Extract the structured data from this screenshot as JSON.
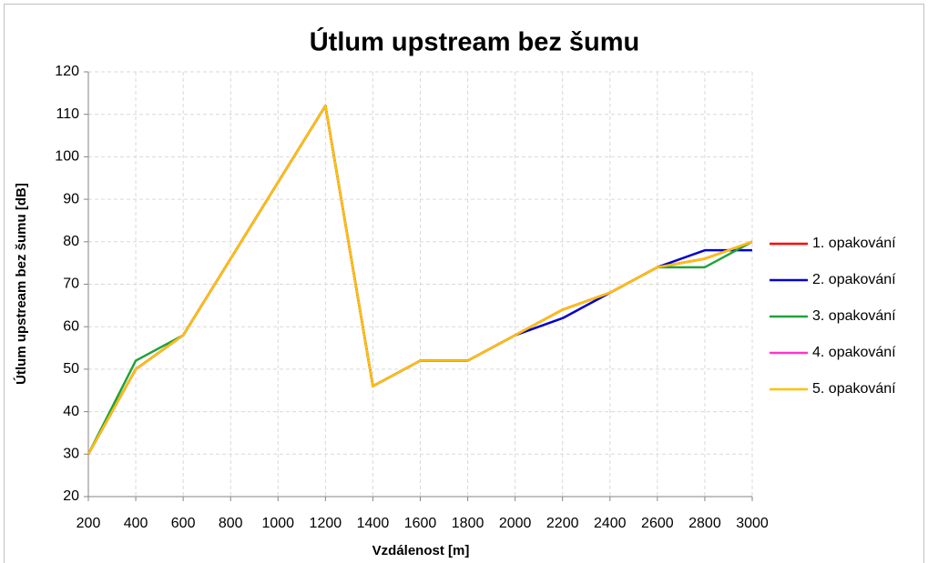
{
  "chart_data": {
    "type": "line",
    "title": "Útlum upstream bez šumu",
    "xlabel": "Vzdálenost [m]",
    "ylabel": "Útlum upstream bez šumu [dB]",
    "x": [
      200,
      400,
      600,
      800,
      1000,
      1200,
      1400,
      1600,
      1800,
      2000,
      2200,
      2400,
      2600,
      2800,
      3000
    ],
    "series": [
      {
        "name": "1. opakování",
        "color": "#ff0000",
        "values": [
          30,
          50,
          58,
          76,
          94,
          112,
          46,
          52,
          52,
          58,
          64,
          68,
          74,
          76,
          80
        ]
      },
      {
        "name": "2. opakování",
        "color": "#0000cc",
        "values": [
          30,
          50,
          58,
          76,
          94,
          112,
          46,
          52,
          52,
          58,
          62,
          68,
          74,
          78,
          78
        ]
      },
      {
        "name": "3. opakování",
        "color": "#1fa33a",
        "values": [
          30,
          52,
          58,
          76,
          94,
          112,
          46,
          52,
          52,
          58,
          64,
          68,
          74,
          74,
          80
        ]
      },
      {
        "name": "4. opakování",
        "color": "#ff33cc",
        "values": [
          30,
          50,
          58,
          76,
          94,
          112,
          46,
          52,
          52,
          58,
          64,
          68,
          74,
          76,
          80
        ]
      },
      {
        "name": "5. opakování",
        "color": "#ffc000",
        "values": [
          30,
          50,
          58,
          76,
          94,
          112,
          46,
          52,
          52,
          58,
          64,
          68,
          74,
          76,
          80
        ]
      }
    ],
    "xlim": [
      200,
      3000
    ],
    "xticks": [
      200,
      400,
      600,
      800,
      1000,
      1200,
      1400,
      1600,
      1800,
      2000,
      2200,
      2400,
      2600,
      2800,
      3000
    ],
    "ylim": [
      20,
      120
    ],
    "yticks": [
      20,
      30,
      40,
      50,
      60,
      70,
      80,
      90,
      100,
      110,
      120
    ],
    "grid": true,
    "legend": "right"
  }
}
